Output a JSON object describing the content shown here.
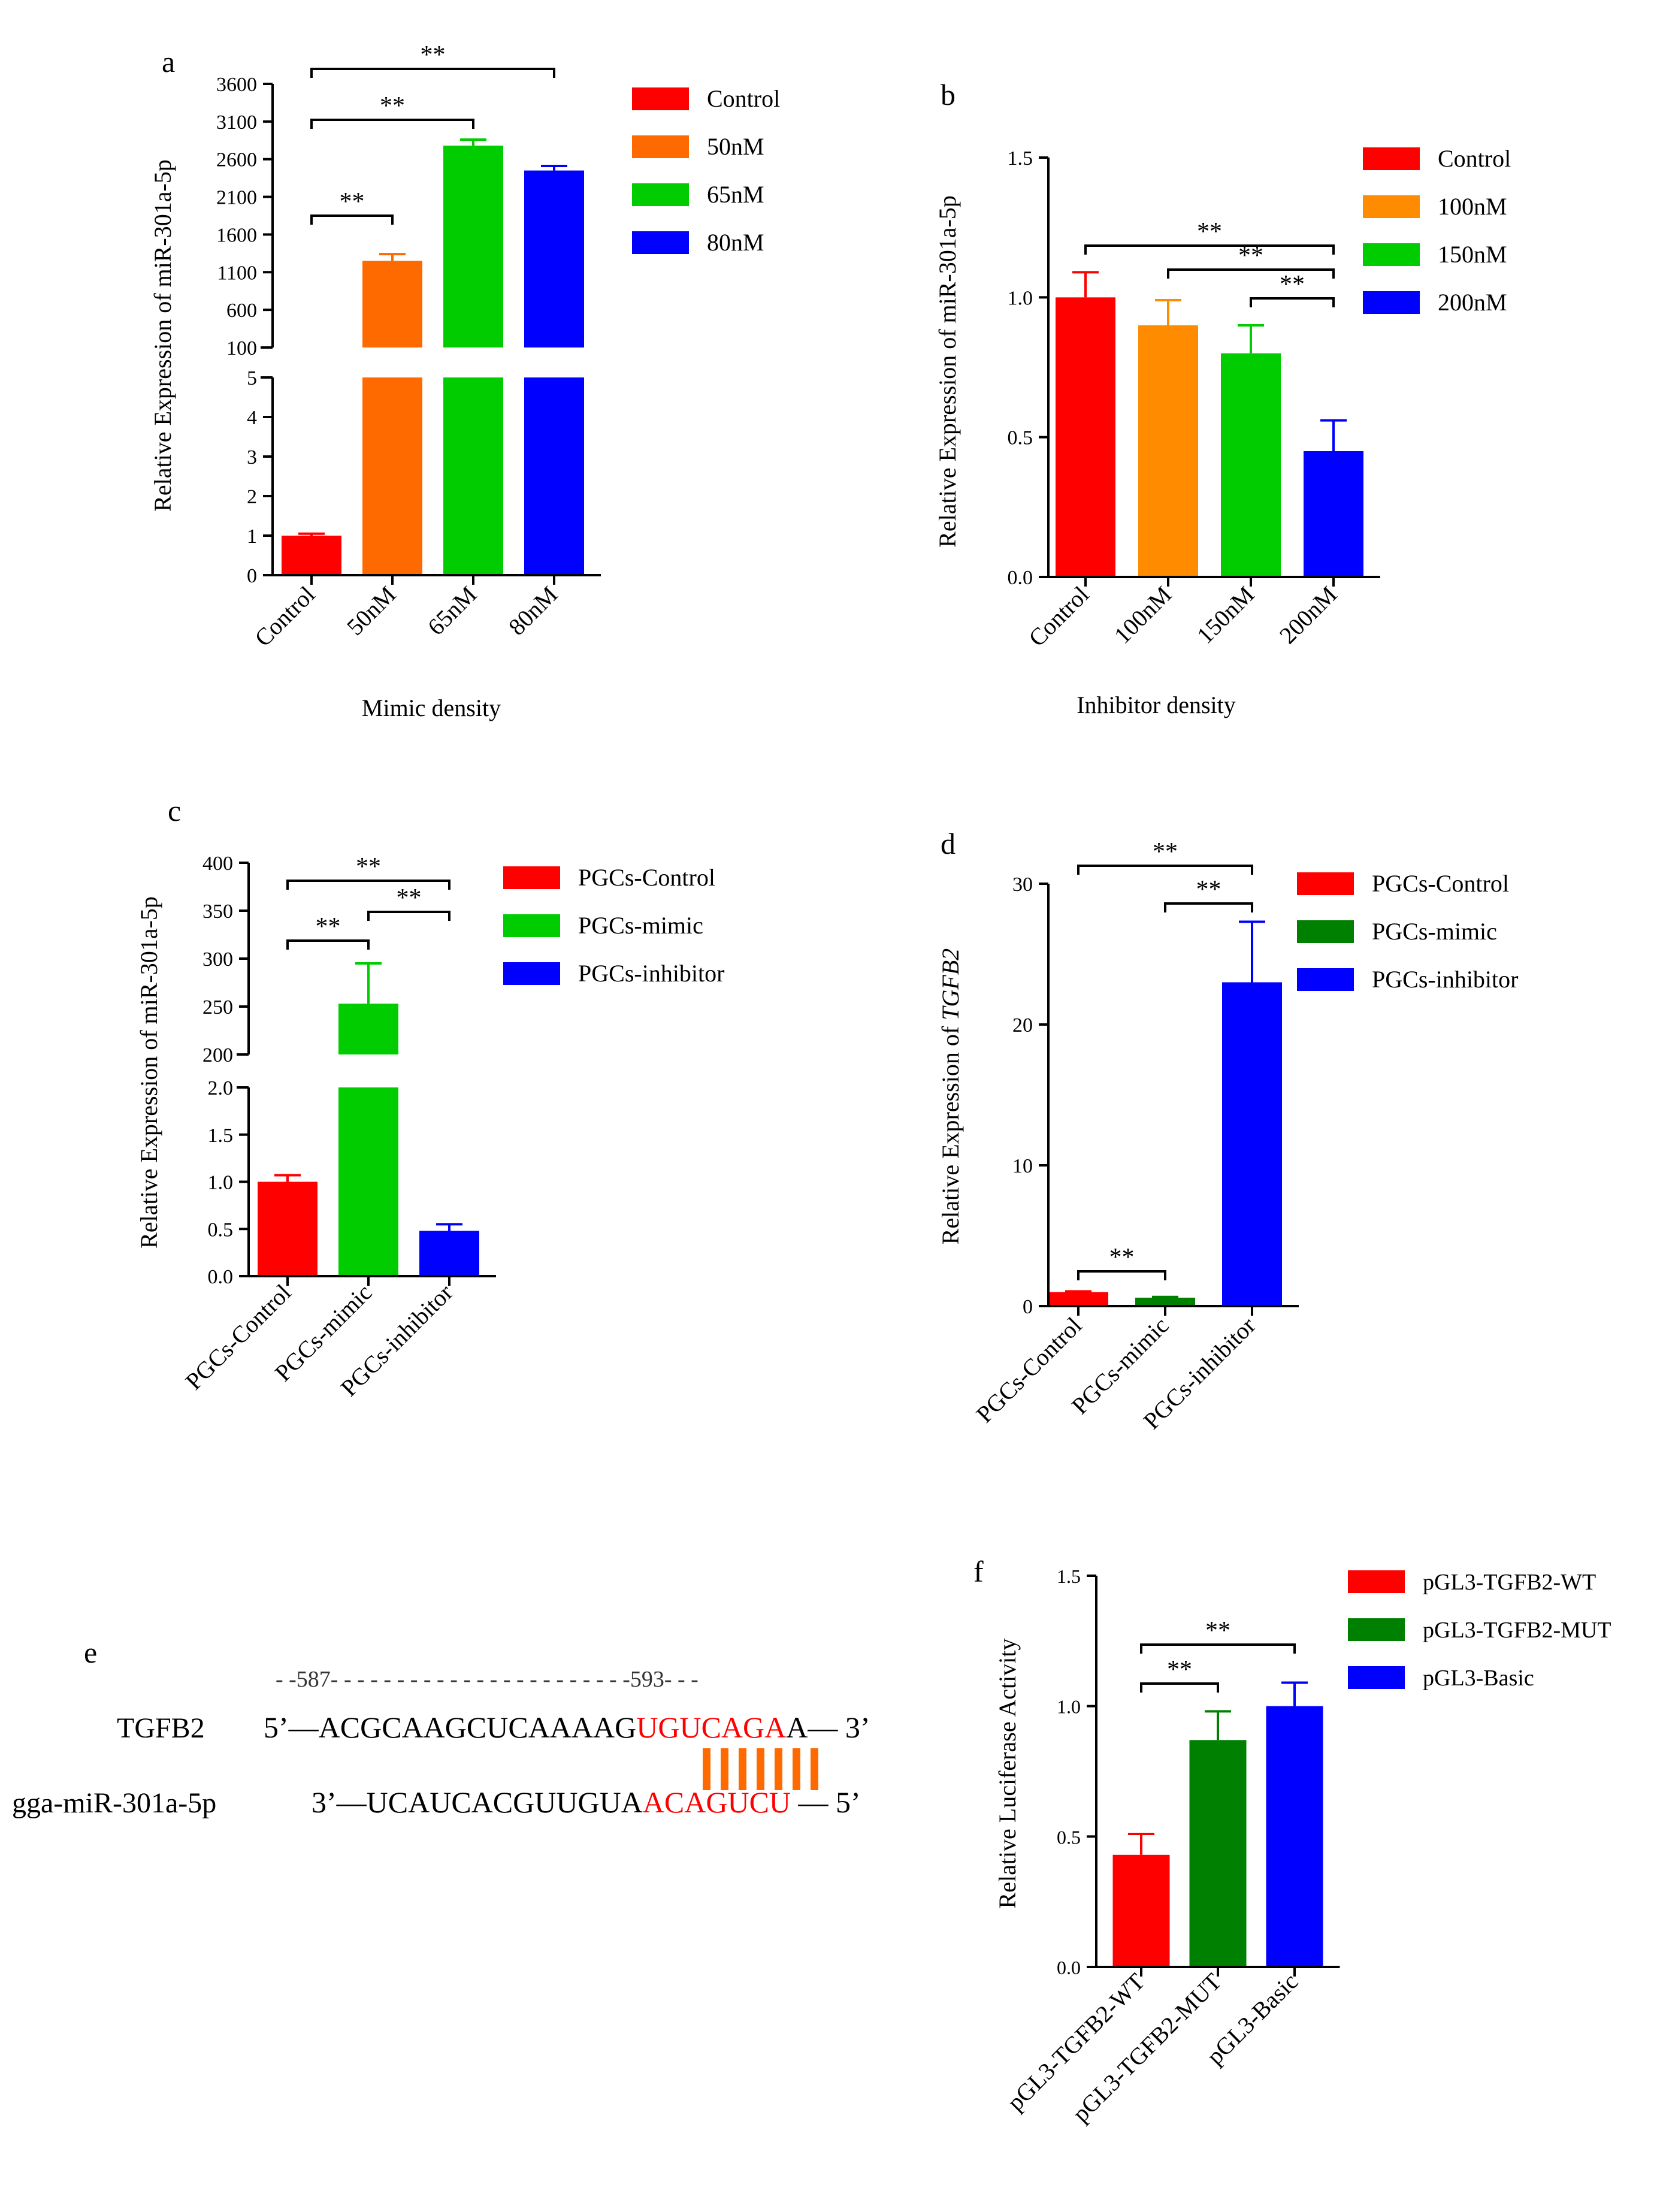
{
  "chart_data": [
    {
      "panel": "a",
      "type": "bar",
      "xlabel": "Mimic density",
      "ylabel": "Relative Expression of miR-301a-5p",
      "categories": [
        "Control",
        "50nM",
        "65nM",
        "80nM"
      ],
      "values": [
        1.0,
        1250,
        2780,
        2450
      ],
      "errors": [
        0.05,
        90,
        80,
        60
      ],
      "axis_break": true,
      "lower_ylim": [
        0,
        5
      ],
      "lower_yticks": [
        "0",
        "1",
        "2",
        "3",
        "4",
        "5"
      ],
      "upper_ylim": [
        100,
        3600
      ],
      "upper_yticks": [
        "100",
        "600",
        "1100",
        "1600",
        "2100",
        "2600",
        "3100",
        "3600"
      ],
      "legend": [
        "Control",
        "50nM",
        "65nM",
        "80nM"
      ],
      "colors": [
        "#ff0000",
        "#ff6a00",
        "#00cc00",
        "#0000ff"
      ],
      "significance": [
        {
          "from": "Control",
          "to": "50nM",
          "label": "**"
        },
        {
          "from": "Control",
          "to": "65nM",
          "label": "**"
        },
        {
          "from": "Control",
          "to": "80nM",
          "label": "**"
        }
      ]
    },
    {
      "panel": "b",
      "type": "bar",
      "xlabel": "Inhibitor density",
      "ylabel": "Relative Expression of miR-301a-5p",
      "categories": [
        "Control",
        "100nM",
        "150nM",
        "200nM"
      ],
      "values": [
        1.0,
        0.9,
        0.8,
        0.45
      ],
      "errors": [
        0.09,
        0.09,
        0.1,
        0.11
      ],
      "ylim": [
        0,
        1.5
      ],
      "yticks": [
        "0.0",
        "0.5",
        "1.0",
        "1.5"
      ],
      "legend": [
        "Control",
        "100nM",
        "150nM",
        "200nM"
      ],
      "colors": [
        "#ff0000",
        "#ff8c00",
        "#00cc00",
        "#0000ff"
      ],
      "significance": [
        {
          "from": "Control",
          "to": "200nM",
          "label": "**"
        },
        {
          "from": "100nM",
          "to": "200nM",
          "label": "**"
        },
        {
          "from": "150nM",
          "to": "200nM",
          "label": "**"
        }
      ]
    },
    {
      "panel": "c",
      "type": "bar",
      "xlabel": "",
      "ylabel": "Relative Expression of miR-301a-5p",
      "categories": [
        "PGCs-Control",
        "PGCs-mimic",
        "PGCs-inhibitor"
      ],
      "values": [
        1.0,
        253,
        0.48
      ],
      "errors": [
        0.07,
        42,
        0.07
      ],
      "axis_break": true,
      "lower_ylim": [
        0,
        2.0
      ],
      "lower_yticks": [
        "0.0",
        "0.5",
        "1.0",
        "1.5",
        "2.0"
      ],
      "upper_ylim": [
        200,
        400
      ],
      "upper_yticks": [
        "200",
        "250",
        "300",
        "350",
        "400"
      ],
      "legend": [
        "PGCs-Control",
        "PGCs-mimic",
        "PGCs-inhibitor"
      ],
      "colors": [
        "#ff0000",
        "#00cc00",
        "#0000ff"
      ],
      "significance": [
        {
          "from": "PGCs-Control",
          "to": "PGCs-inhibitor",
          "label": "**"
        },
        {
          "from": "PGCs-Control",
          "to": "PGCs-mimic",
          "label": "**"
        },
        {
          "from": "PGCs-mimic",
          "to": "PGCs-inhibitor",
          "label": "**"
        }
      ]
    },
    {
      "panel": "d",
      "type": "bar",
      "xlabel": "",
      "ylabel_prefix": "Relative Expression of ",
      "ylabel_gene": "TGFB2",
      "categories": [
        "PGCs-Control",
        "PGCs-mimic",
        "PGCs-inhibitor"
      ],
      "values": [
        1.0,
        0.6,
        23
      ],
      "errors": [
        0.05,
        0.05,
        4.3
      ],
      "ylim": [
        0,
        30
      ],
      "yticks": [
        "0",
        "10",
        "20",
        "30"
      ],
      "legend": [
        "PGCs-Control",
        "PGCs-mimic",
        "PGCs-inhibitor"
      ],
      "colors": [
        "#ff0000",
        "#008000",
        "#0000ff"
      ],
      "significance": [
        {
          "from": "PGCs-Control",
          "to": "PGCs-inhibitor",
          "label": "**"
        },
        {
          "from": "PGCs-mimic",
          "to": "PGCs-inhibitor",
          "label": "**"
        },
        {
          "from": "PGCs-Control",
          "to": "PGCs-mimic",
          "label": "**"
        }
      ]
    },
    {
      "panel": "f",
      "type": "bar",
      "xlabel": "",
      "ylabel": "Relative Luciferase Activity",
      "categories": [
        "pGL3-TGFB2-WT",
        "pGL3-TGFB2-MUT",
        "pGL3-Basic"
      ],
      "values": [
        0.43,
        0.87,
        1.0
      ],
      "errors": [
        0.08,
        0.11,
        0.09
      ],
      "ylim": [
        0,
        1.5
      ],
      "yticks": [
        "0.0",
        "0.5",
        "1.0",
        "1.5"
      ],
      "legend": [
        "pGL3-TGFB2-WT",
        "pGL3-TGFB2-MUT",
        "pGL3-Basic"
      ],
      "colors": [
        "#ff0000",
        "#008000",
        "#0000ff"
      ],
      "significance": [
        {
          "from": "pGL3-TGFB2-WT",
          "to": "pGL3-Basic",
          "label": "**"
        },
        {
          "from": "pGL3-TGFB2-WT",
          "to": "pGL3-TGFB2-MUT",
          "label": "**"
        }
      ]
    }
  ],
  "panel_e": {
    "letter": "e",
    "position_line": "- -587- - - - - - - - - - - - - - - - - - - - - - -593- - -",
    "gene_name": "TGFB2",
    "gene_prefix": "5’—ACGCAAGCUCAAAAG",
    "gene_seed": "UGUCAGA",
    "gene_suffix": "A— 3’",
    "mirna_name": "gga-miR-301a-5p",
    "mirna_prefix": "3’—UCAUCACGUUGUA",
    "mirna_seed": "ACAGUCU",
    "mirna_suffix": " — 5’",
    "seed_color": "#ff0000",
    "pair_color": "#ff6a00",
    "pair_count": 7
  },
  "panel_letters": {
    "a": "a",
    "b": "b",
    "c": "c",
    "d": "d",
    "f": "f"
  }
}
